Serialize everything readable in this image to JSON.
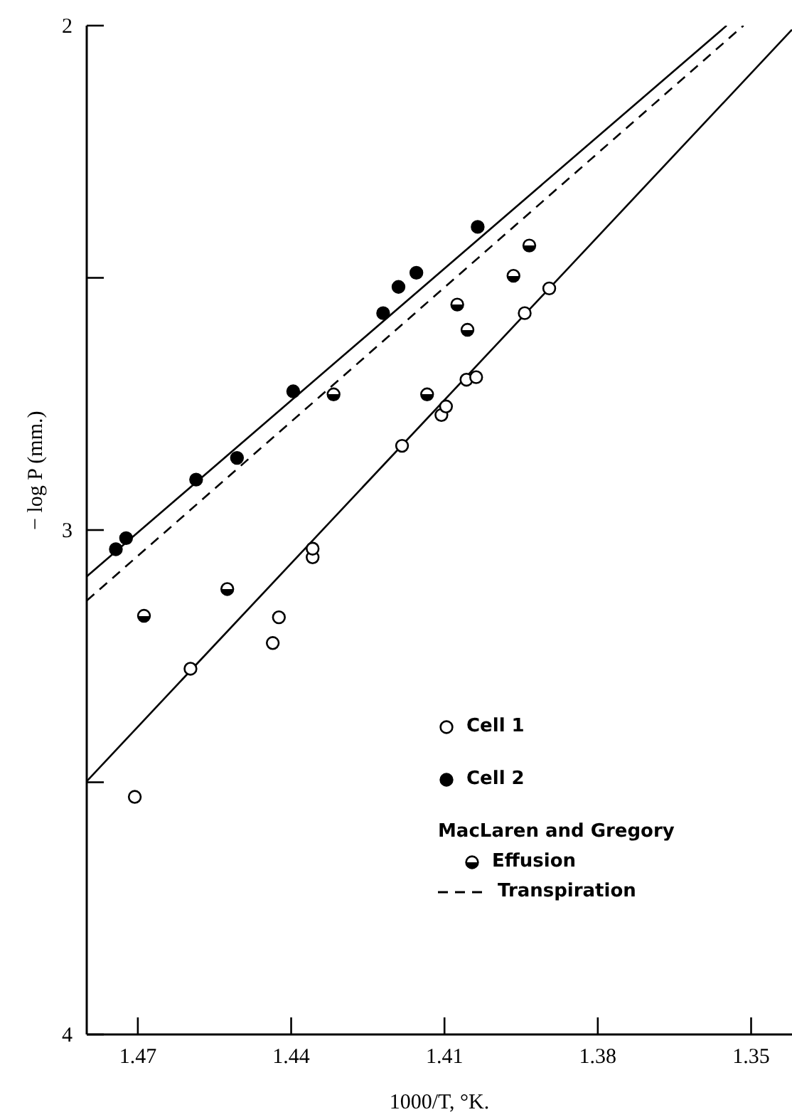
{
  "chart_data": {
    "type": "scatter",
    "xlabel": "1000/T, °K.",
    "ylabel": "− log P (mm.)",
    "xlim": [
      1.48,
      1.342
    ],
    "ylim": [
      4,
      2
    ],
    "xticks": [
      1.47,
      1.44,
      1.41,
      1.38,
      1.35
    ],
    "yticks": [
      2,
      {
        "value": 2.5,
        "label": null
      },
      3,
      {
        "value": 3.5,
        "label": null
      },
      4
    ],
    "grid": false,
    "legend": "bottom right",
    "marker": "circle",
    "annotations": [
      "MacLaren and Gregory"
    ],
    "series": [
      {
        "name": "Cell 1",
        "color": "#000000",
        "x": [
          1.4706,
          1.4597,
          1.4436,
          1.4424,
          1.4358,
          1.4358,
          1.4183,
          1.4106,
          1.4097,
          1.4057,
          1.4038,
          1.3943,
          1.3895
        ],
        "values": [
          3.529,
          3.275,
          3.224,
          3.173,
          3.054,
          3.037,
          2.833,
          2.772,
          2.755,
          2.702,
          2.697,
          2.57,
          2.521
        ]
      },
      {
        "name": "Cell 2",
        "color": "#000000",
        "x": [
          1.4743,
          1.4723,
          1.4586,
          1.4506,
          1.4396,
          1.422,
          1.419,
          1.4155,
          1.4035
        ],
        "values": [
          3.038,
          3.016,
          2.9,
          2.857,
          2.725,
          2.57,
          2.518,
          2.49,
          2.399
        ]
      },
      {
        "name": "Effusion",
        "color": "#000000",
        "x": [
          1.4688,
          1.4525,
          1.4317,
          1.4134,
          1.4075,
          1.4055,
          1.3965,
          1.3934
        ],
        "values": [
          3.17,
          3.117,
          2.731,
          2.731,
          2.553,
          2.603,
          2.496,
          2.436
        ]
      },
      {
        "name": "Transpiration",
        "type": "line",
        "line_style": "dashed",
        "marker": "none",
        "color": "#000000",
        "x": [
          1.48,
          1.3515
        ],
        "values": [
          3.14,
          2
        ]
      },
      {
        "type": "line",
        "line_style": "solid",
        "marker": "none",
        "color": "#000000",
        "x": [
          1.48,
          1.3548
        ],
        "values": [
          3.092,
          2
        ]
      },
      {
        "type": "line",
        "line_style": "solid",
        "marker": "none",
        "color": "#000000",
        "x": [
          1.48,
          1.342
        ],
        "values": [
          3.498,
          2.008
        ]
      }
    ]
  }
}
